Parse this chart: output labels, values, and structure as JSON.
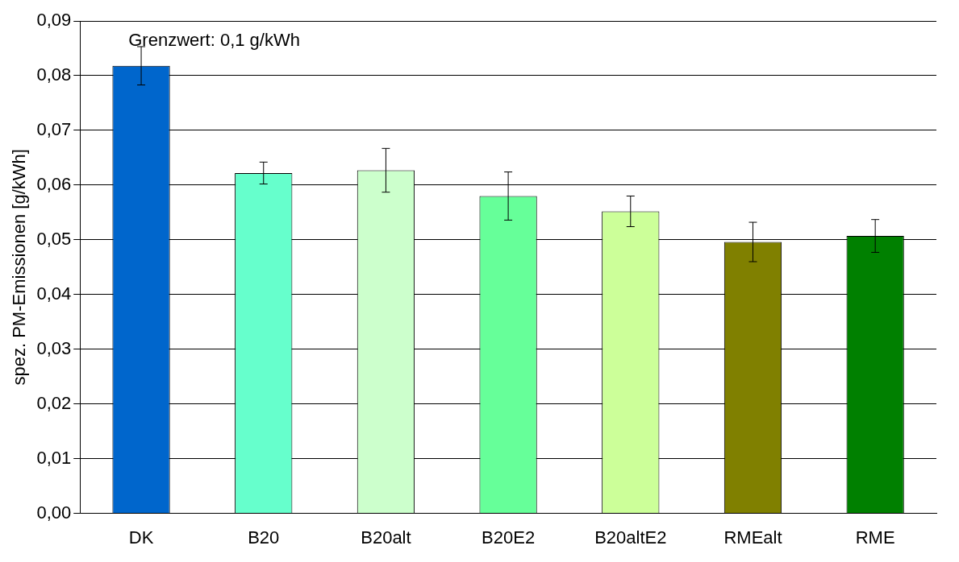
{
  "chart_data": {
    "type": "bar",
    "ylabel": "spez. PM-Emissionen [g/kWh]",
    "annotations": [
      "Grenzwert: 0,1 g/kWh"
    ],
    "categories": [
      "DK",
      "B20",
      "B20alt",
      "B20E2",
      "B20altE2",
      "RMEalt",
      "RME"
    ],
    "values": [
      0.0818,
      0.0622,
      0.0627,
      0.058,
      0.0552,
      0.0496,
      0.0507
    ],
    "errors": [
      0.0035,
      0.002,
      0.004,
      0.0044,
      0.0028,
      0.0036,
      0.003
    ],
    "colors": [
      "#0066cc",
      "#66ffcc",
      "#ccffcc",
      "#66ff99",
      "#ccff99",
      "#808000",
      "#008000"
    ],
    "ylim": [
      0,
      0.09
    ],
    "yticks": [
      {
        "value": 0,
        "label": "0,00"
      },
      {
        "value": 0.01,
        "label": "0,01"
      },
      {
        "value": 0.02,
        "label": "0,02"
      },
      {
        "value": 0.03,
        "label": "0,03"
      },
      {
        "value": 0.04,
        "label": "0,04"
      },
      {
        "value": 0.05,
        "label": "0,05"
      },
      {
        "value": 0.06,
        "label": "0,06"
      },
      {
        "value": 0.07,
        "label": "0,07"
      },
      {
        "value": 0.08,
        "label": "0,08"
      },
      {
        "value": 0.09,
        "label": "0,09"
      }
    ],
    "grid": "y"
  }
}
